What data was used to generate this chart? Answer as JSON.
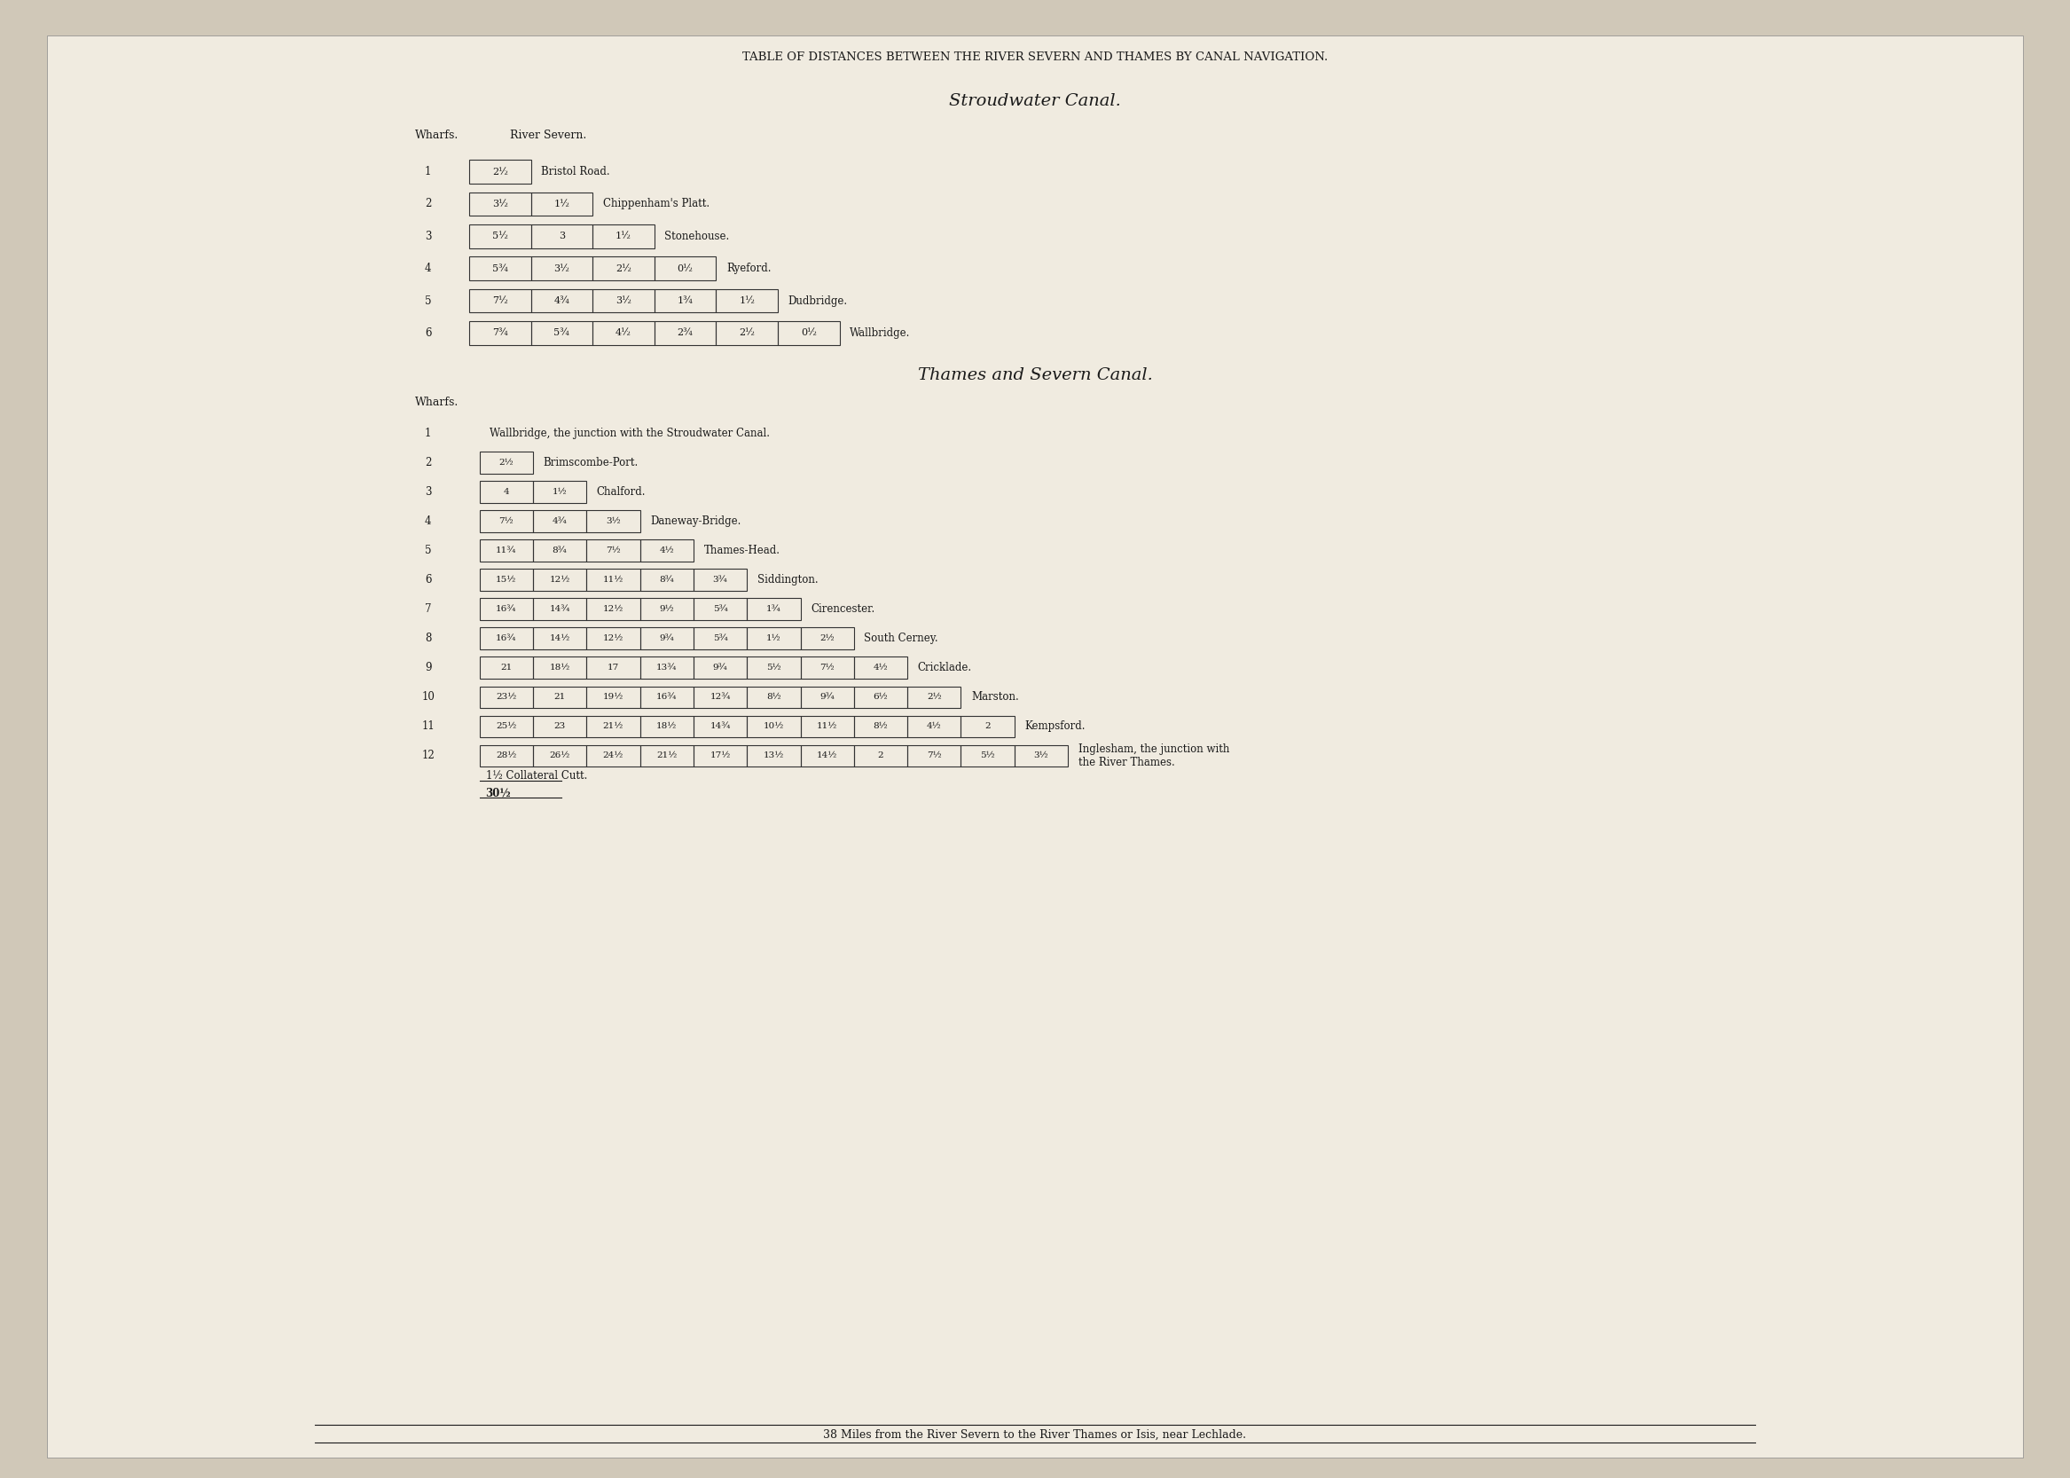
{
  "bg_color": "#e8e0d0",
  "paper_color": "#f5f0e8",
  "text_color": "#1a1a1a",
  "main_title": "TABLE OF DISTANCES BETWEEN THE RIVER SEVERN AND THAMES BY CANAL NAVIGATION.",
  "section1_title": "Stroudwater Canal.",
  "section1_header_col1": "Wharfs.",
  "section1_header_col2": "River Severn.",
  "stroudwater_rows": [
    {
      "num": "1",
      "cells": [
        "2½"
      ],
      "name": "Bristol Road."
    },
    {
      "num": "2",
      "cells": [
        "3½",
        "1½"
      ],
      "name": "Chippenham's Platt."
    },
    {
      "num": "3",
      "cells": [
        "5½",
        "3",
        "1½"
      ],
      "name": "Stonehouse."
    },
    {
      "num": "4",
      "cells": [
        "5¾",
        "3½",
        "2½",
        "0½"
      ],
      "name": "Ryeford."
    },
    {
      "num": "5",
      "cells": [
        "7½",
        "4¾",
        "3½",
        "1¾",
        "1½"
      ],
      "name": "Dudbridge."
    },
    {
      "num": "6",
      "cells": [
        "7¾",
        "5¾",
        "4½",
        "2¾",
        "2½",
        "0½"
      ],
      "name": "Wallbridge."
    }
  ],
  "section2_title": "Thames and Severn Canal.",
  "section2_header_col1": "Wharfs.",
  "thames_severn_rows": [
    {
      "num": "1",
      "cells": [],
      "name": "Wallbridge, the junction with the Stroudwater Canal."
    },
    {
      "num": "2",
      "cells": [
        "2½"
      ],
      "name": "Brimscombe-Port."
    },
    {
      "num": "3",
      "cells": [
        "4",
        "1½"
      ],
      "name": "Chalford."
    },
    {
      "num": "4",
      "cells": [
        "7½",
        "4¾",
        "3½"
      ],
      "name": "Daneway-Bridge."
    },
    {
      "num": "5",
      "cells": [
        "11¾",
        "8¾",
        "7½",
        "4½"
      ],
      "name": "Thames-Head."
    },
    {
      "num": "6",
      "cells": [
        "15½",
        "12½",
        "11½",
        "8¾",
        "3¾"
      ],
      "name": "Siddington."
    },
    {
      "num": "7",
      "cells": [
        "16¾",
        "14¾",
        "12½",
        "9½",
        "5¾",
        "1¾"
      ],
      "name": "Cirencester."
    },
    {
      "num": "8",
      "cells": [
        "16¾",
        "14½",
        "12½",
        "9¾",
        "5¾",
        "1½",
        "2½"
      ],
      "name": "South Cerney."
    },
    {
      "num": "9",
      "cells": [
        "21",
        "18½",
        "17",
        "13¾",
        "9¾",
        "5½",
        "7½",
        "4½"
      ],
      "name": "Cricklade."
    },
    {
      "num": "10",
      "cells": [
        "23½",
        "21",
        "19½",
        "16¾",
        "12¾",
        "8½",
        "9¾",
        "6½",
        "2½"
      ],
      "name": "Marston."
    },
    {
      "num": "11",
      "cells": [
        "25½",
        "23",
        "21½",
        "18½",
        "14¾",
        "10½",
        "11½",
        "8½",
        "4½",
        "2"
      ],
      "name": "Kempsford."
    },
    {
      "num": "12",
      "cells": [
        "28½",
        "26½",
        "24½",
        "21½",
        "17½",
        "13½",
        "14½",
        "2",
        "7½",
        "5½",
        "3½"
      ],
      "name": "Inglesham, the junction with\nthe River Thames."
    }
  ],
  "collateral_note": "1½ Collateral Cutt.",
  "total_note": "30½",
  "footer_note": "38 Miles from the River Severn to the River Thames or Isis, near Lechlade."
}
